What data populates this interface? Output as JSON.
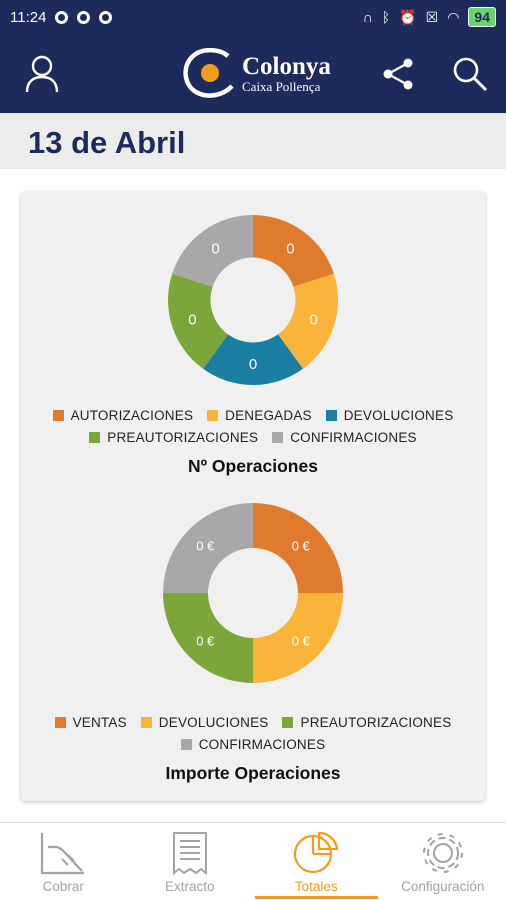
{
  "status_bar": {
    "time": "11:24",
    "battery": "94"
  },
  "header": {
    "logo_title": "Colonya",
    "logo_subtitle": "Caixa Pollença",
    "icons": {
      "left": "user-icon",
      "share": "share-icon",
      "search": "search-icon"
    }
  },
  "date_title": "13 de Abril",
  "colors": {
    "orange": "#e07b2e",
    "yellow": "#fbb43a",
    "blue": "#1b7ea3",
    "green": "#7ba63a",
    "gray": "#a8a8a8",
    "navy": "#1d2a5c",
    "accent": "#f39b1d"
  },
  "chart_data": [
    {
      "type": "pie",
      "title": "Nº Operaciones",
      "donut": true,
      "categories": [
        "AUTORIZACIONES",
        "DENEGADAS",
        "DEVOLUCIONES",
        "PREAUTORIZACIONES",
        "CONFIRMACIONES"
      ],
      "values": [
        0,
        0,
        0,
        0,
        0
      ],
      "labels": [
        "0",
        "0",
        "0",
        "0",
        "0"
      ],
      "colors": [
        "#e07b2e",
        "#fbb43a",
        "#1b7ea3",
        "#7ba63a",
        "#a8a8a8"
      ],
      "legend_rows": [
        [
          0,
          1,
          2
        ],
        [
          3,
          4
        ]
      ],
      "legend": "bottom"
    },
    {
      "type": "pie",
      "title": "Importe Operaciones",
      "donut": true,
      "categories": [
        "VENTAS",
        "DEVOLUCIONES",
        "PREAUTORIZACIONES",
        "CONFIRMACIONES"
      ],
      "values": [
        0,
        0,
        0,
        0
      ],
      "labels": [
        "0 €",
        "0 €",
        "0 €",
        "0 €"
      ],
      "colors": [
        "#e07b2e",
        "#fbb43a",
        "#7ba63a",
        "#a8a8a8"
      ],
      "legend_rows": [
        [
          0,
          1,
          2
        ],
        [
          3
        ]
      ],
      "legend": "bottom"
    }
  ],
  "nav": [
    {
      "label": "Cobrar",
      "icon": "cobrar-icon",
      "active": false
    },
    {
      "label": "Extracto",
      "icon": "receipt-icon",
      "active": false
    },
    {
      "label": "Totales",
      "icon": "pie-chart-icon",
      "active": true
    },
    {
      "label": "Configuración",
      "icon": "gear-icon",
      "active": false
    }
  ]
}
